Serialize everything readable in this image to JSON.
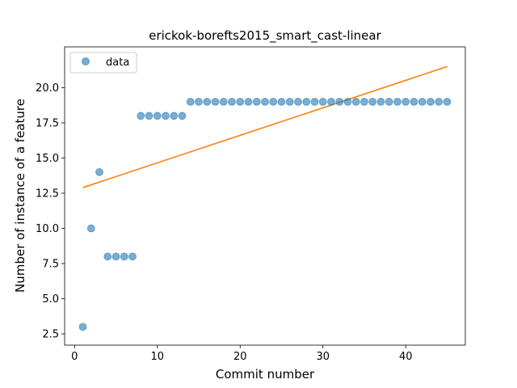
{
  "chart_data": {
    "type": "scatter",
    "title": "erickok-borefts2015_smart_cast-linear",
    "xlabel": "Commit number",
    "ylabel": "Number of instance of a feature",
    "xlim": [
      -1.2,
      47.2
    ],
    "ylim": [
      1.7,
      22.9
    ],
    "xticks": [
      0,
      10,
      20,
      30,
      40
    ],
    "yticks": [
      2.5,
      5.0,
      7.5,
      10.0,
      12.5,
      15.0,
      17.5,
      20.0
    ],
    "ytick_labels": [
      "2.5",
      "5.0",
      "7.5",
      "10.0",
      "12.5",
      "15.0",
      "17.5",
      "20.0"
    ],
    "legend": {
      "placement": "upper-left",
      "entries": [
        "data"
      ]
    },
    "series": [
      {
        "name": "data",
        "kind": "scatter",
        "color": "#1f77b4",
        "x": [
          1,
          2,
          3,
          4,
          5,
          6,
          7,
          8,
          9,
          10,
          11,
          12,
          13,
          14,
          15,
          16,
          17,
          18,
          19,
          20,
          21,
          22,
          23,
          24,
          25,
          26,
          27,
          28,
          29,
          30,
          31,
          32,
          33,
          34,
          35,
          36,
          37,
          38,
          39,
          40,
          41,
          42,
          43,
          44,
          45
        ],
        "y": [
          3,
          10,
          14,
          8,
          8,
          8,
          8,
          18,
          18,
          18,
          18,
          18,
          18,
          19,
          19,
          19,
          19,
          19,
          19,
          19,
          19,
          19,
          19,
          19,
          19,
          19,
          19,
          19,
          19,
          19,
          19,
          19,
          19,
          19,
          19,
          19,
          19,
          19,
          19,
          19,
          19,
          19,
          19,
          19,
          19
        ]
      },
      {
        "kind": "line",
        "color": "#ff7f0e",
        "x": [
          1,
          45
        ],
        "y": [
          12.9,
          21.5
        ]
      }
    ]
  }
}
